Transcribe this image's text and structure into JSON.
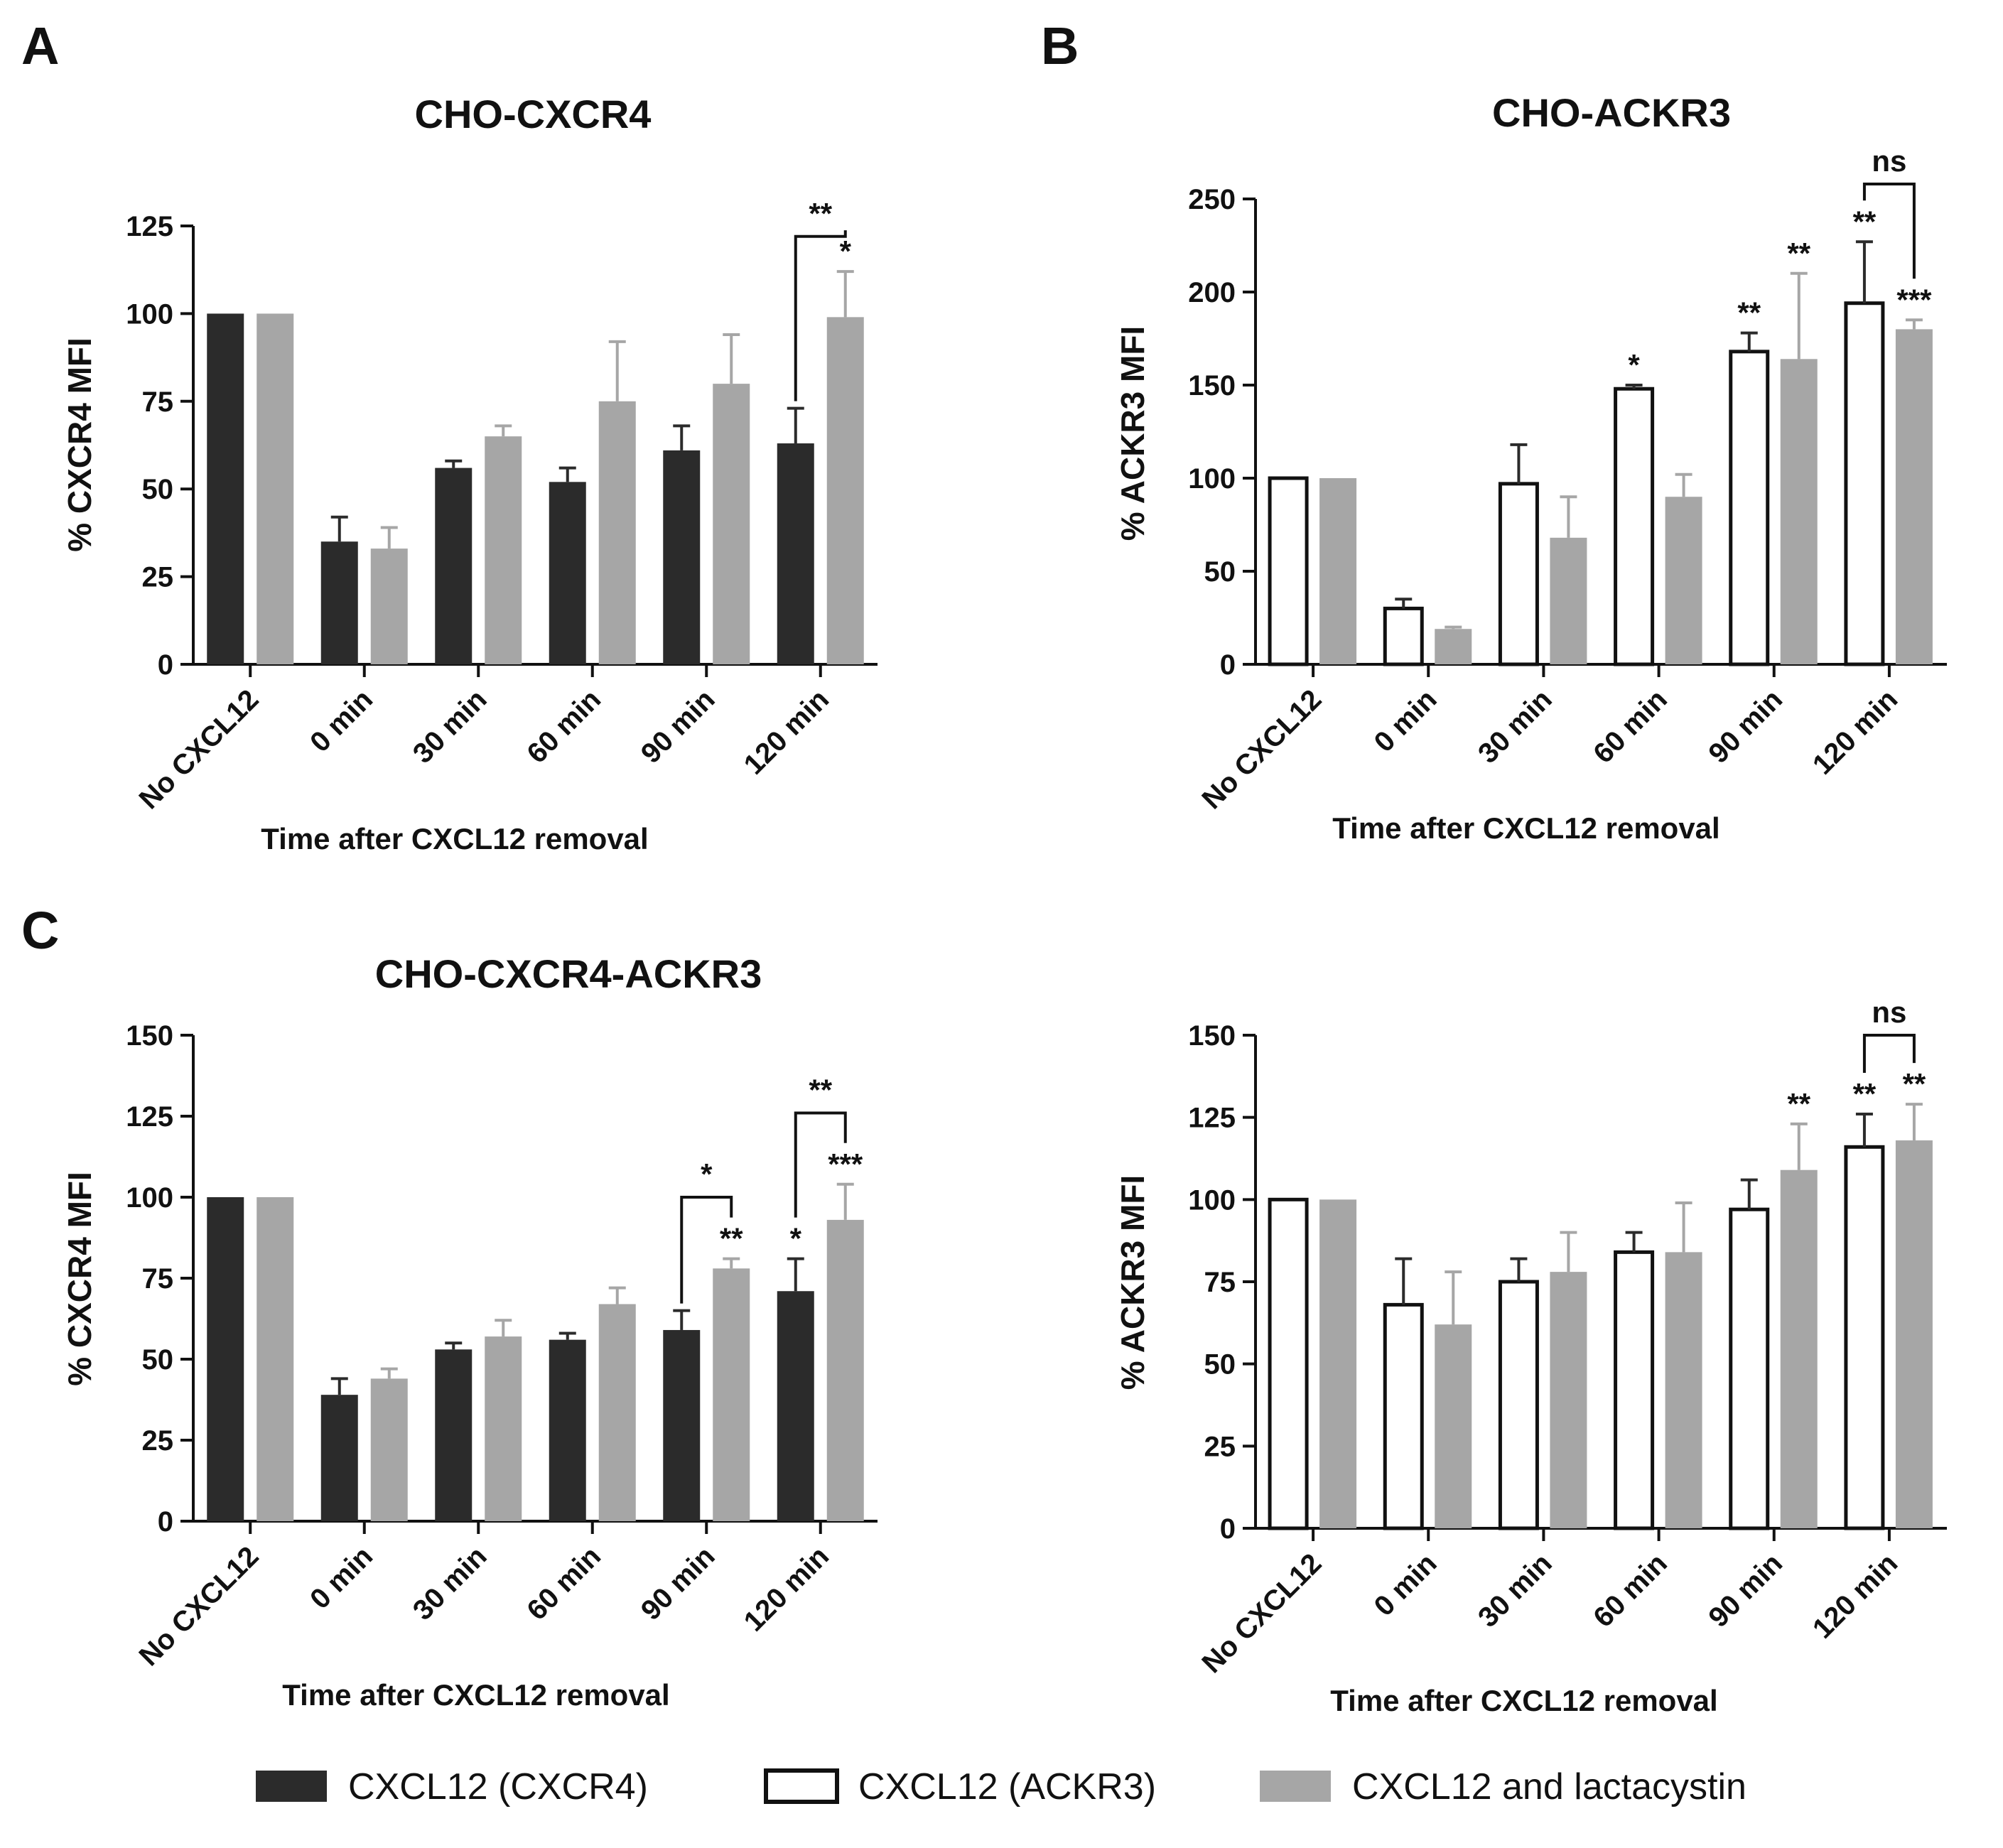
{
  "colors": {
    "dark": "#2b2b2b",
    "gray": "#a6a6a6",
    "open": "#ffffff",
    "ink": "#111111"
  },
  "legend": [
    {
      "label": "CXCL12 (CXCR4)",
      "style": "dark"
    },
    {
      "label": "CXCL12 (ACKR3)",
      "style": "open"
    },
    {
      "label": "CXCL12 and lactacystin",
      "style": "gray"
    }
  ],
  "chart_data": [
    {
      "id": "A",
      "panel_label": "A",
      "type": "bar",
      "title": "CHO-CXCR4",
      "ylabel": "% CXCR4 MFI",
      "xlabel": "Time after CXCL12 removal",
      "ylim": [
        0,
        125
      ],
      "yticks": [
        0,
        25,
        50,
        75,
        100,
        125
      ],
      "categories": [
        "No CXCL12",
        "0 min",
        "30 min",
        "60 min",
        "90 min",
        "120 min"
      ],
      "series": [
        {
          "style": "dark",
          "values": [
            100,
            35,
            56,
            52,
            61,
            63
          ],
          "errors": [
            0,
            7,
            2,
            4,
            7,
            10
          ]
        },
        {
          "style": "gray",
          "values": [
            100,
            33,
            65,
            75,
            80,
            99
          ],
          "errors": [
            0,
            6,
            3,
            17,
            14,
            13
          ]
        }
      ],
      "annotations": [
        {
          "text": "*",
          "cat": 5,
          "series": 1
        }
      ],
      "brackets": [
        {
          "cat": 5,
          "a": 0,
          "b": 1,
          "top": 122,
          "text": "**"
        }
      ]
    },
    {
      "id": "B",
      "panel_label": "B",
      "type": "bar",
      "title": "CHO-ACKR3",
      "ylabel": "% ACKR3 MFI",
      "xlabel": "Time after CXCL12 removal",
      "ylim": [
        0,
        250
      ],
      "yticks": [
        0,
        50,
        100,
        150,
        200,
        250
      ],
      "categories": [
        "No CXCL12",
        "0 min",
        "30 min",
        "60 min",
        "90 min",
        "120 min"
      ],
      "series": [
        {
          "style": "open",
          "values": [
            100,
            30,
            97,
            148,
            168,
            194
          ],
          "errors": [
            0,
            5,
            21,
            2,
            10,
            33
          ]
        },
        {
          "style": "gray",
          "values": [
            100,
            19,
            68,
            90,
            164,
            180
          ],
          "errors": [
            0,
            1,
            22,
            12,
            46,
            5
          ]
        }
      ],
      "annotations": [
        {
          "text": "*",
          "cat": 3,
          "series": 0
        },
        {
          "text": "**",
          "cat": 4,
          "series": 0
        },
        {
          "text": "**",
          "cat": 4,
          "series": 1
        },
        {
          "text": "**",
          "cat": 5,
          "series": 0
        },
        {
          "text": "***",
          "cat": 5,
          "series": 1
        }
      ],
      "brackets": [
        {
          "cat": 5,
          "a": 0,
          "b": 1,
          "top": 258,
          "text": "ns"
        }
      ]
    },
    {
      "id": "C1",
      "panel_label": "C",
      "type": "bar",
      "title": "CHO-CXCR4-ACKR3",
      "ylabel": "% CXCR4 MFI",
      "xlabel": "Time after CXCL12 removal",
      "ylim": [
        0,
        150
      ],
      "yticks": [
        0,
        25,
        50,
        75,
        100,
        125,
        150
      ],
      "categories": [
        "No CXCL12",
        "0 min",
        "30 min",
        "60 min",
        "90 min",
        "120 min"
      ],
      "series": [
        {
          "style": "dark",
          "values": [
            100,
            39,
            53,
            56,
            59,
            71
          ],
          "errors": [
            0,
            5,
            2,
            2,
            6,
            10
          ]
        },
        {
          "style": "gray",
          "values": [
            100,
            44,
            57,
            67,
            78,
            93
          ],
          "errors": [
            0,
            3,
            5,
            5,
            3,
            11
          ]
        }
      ],
      "annotations": [
        {
          "text": "**",
          "cat": 4,
          "series": 1
        },
        {
          "text": "*",
          "cat": 5,
          "series": 0
        },
        {
          "text": "***",
          "cat": 5,
          "series": 1
        }
      ],
      "brackets": [
        {
          "cat": 4,
          "a": 0,
          "b": 1,
          "top": 100,
          "text": "*"
        },
        {
          "cat": 5,
          "a": 0,
          "b": 1,
          "top": 126,
          "text": "**"
        }
      ]
    },
    {
      "id": "C2",
      "panel_label": "",
      "type": "bar",
      "title": "",
      "ylabel": "% ACKR3 MFI",
      "xlabel": "Time after CXCL12 removal",
      "ylim": [
        0,
        150
      ],
      "yticks": [
        0,
        25,
        50,
        75,
        100,
        125,
        150
      ],
      "categories": [
        "No CXCL12",
        "0 min",
        "30 min",
        "60 min",
        "90 min",
        "120 min"
      ],
      "series": [
        {
          "style": "open",
          "values": [
            100,
            68,
            75,
            84,
            97,
            116
          ],
          "errors": [
            0,
            14,
            7,
            6,
            9,
            10
          ]
        },
        {
          "style": "gray",
          "values": [
            100,
            62,
            78,
            84,
            109,
            118
          ],
          "errors": [
            0,
            16,
            12,
            15,
            14,
            11
          ]
        }
      ],
      "annotations": [
        {
          "text": "**",
          "cat": 4,
          "series": 1
        },
        {
          "text": "**",
          "cat": 5,
          "series": 0
        },
        {
          "text": "**",
          "cat": 5,
          "series": 1
        }
      ],
      "brackets": [
        {
          "cat": 5,
          "a": 0,
          "b": 1,
          "top": 150,
          "text": "ns"
        }
      ]
    }
  ]
}
